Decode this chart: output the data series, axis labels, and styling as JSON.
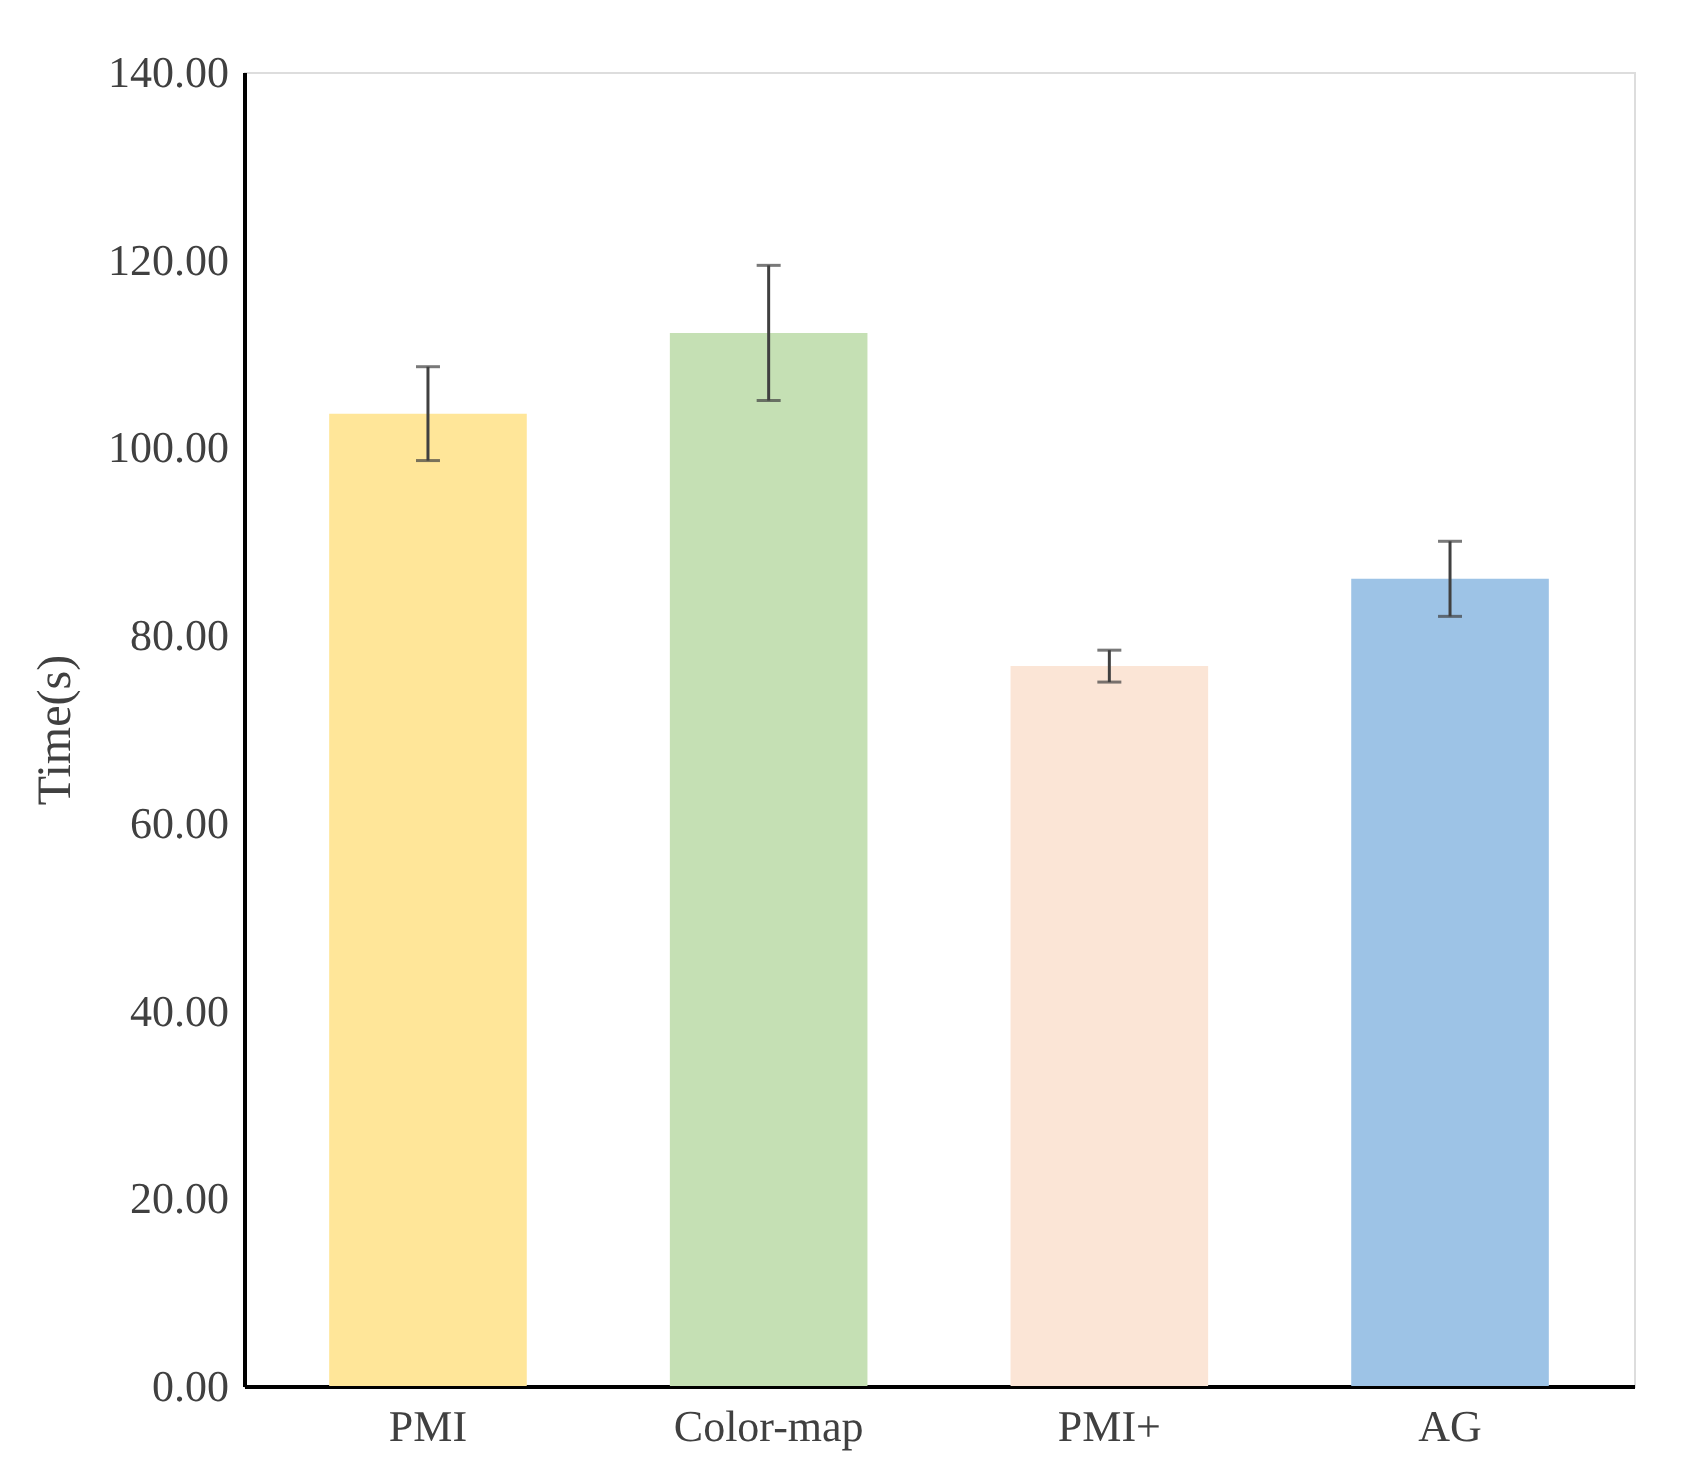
{
  "chart_data": {
    "type": "bar",
    "ylabel": "Time(s)",
    "categories": [
      "PMI",
      "Color-map",
      "PMI+",
      "AG"
    ],
    "values": [
      103.6,
      112.2,
      76.7,
      86.0
    ],
    "errors": [
      5.0,
      7.2,
      1.7,
      4.0
    ],
    "colors": [
      "#ffe699",
      "#c5e0b4",
      "#fbe5d6",
      "#9dc3e6"
    ],
    "ylim": [
      0,
      140
    ],
    "yticks": [
      {
        "value": 0,
        "label": "0.00"
      },
      {
        "value": 20,
        "label": "20.00"
      },
      {
        "value": 40,
        "label": "40.00"
      },
      {
        "value": 60,
        "label": "60.00"
      },
      {
        "value": 80,
        "label": "80.00"
      },
      {
        "value": 100,
        "label": "100.00"
      },
      {
        "value": 120,
        "label": "120.00"
      },
      {
        "value": 140,
        "label": "140.00"
      }
    ],
    "grid": false
  }
}
